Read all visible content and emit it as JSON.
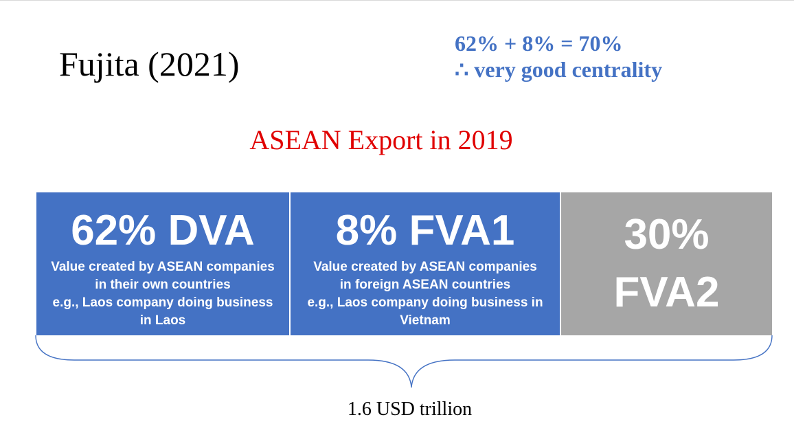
{
  "slide": {
    "title": "Fujita (2021)",
    "formula_line1": "62% + 8% = 70%",
    "formula_line2": "∴  very good centrality",
    "subtitle": "ASEAN Export in 2019",
    "total": "1.6 USD trillion"
  },
  "boxes": [
    {
      "heading": "62% DVA",
      "desc": [
        "Value created by ASEAN companies",
        "in their own countries",
        "e.g., Laos company doing business",
        "in Laos"
      ],
      "color": "#4472c4"
    },
    {
      "heading": "8% FVA1",
      "desc": [
        "Value created by ASEAN companies",
        "in foreign ASEAN countries",
        "e.g., Laos company doing business in",
        "Vietnam"
      ],
      "color": "#4472c4"
    },
    {
      "heading_line1": "30%",
      "heading_line2": "FVA2",
      "color": "#a6a6a6"
    }
  ],
  "colors": {
    "accent_blue": "#4472c4",
    "gray": "#a6a6a6",
    "subtitle_red": "#e00000"
  }
}
